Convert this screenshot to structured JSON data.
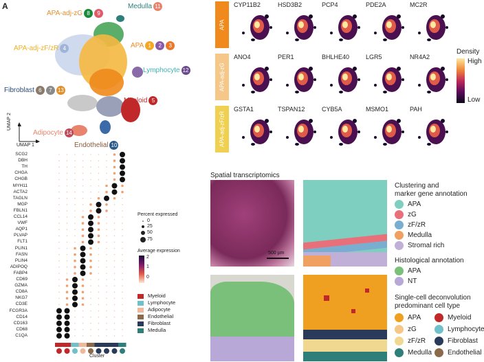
{
  "panel_label": "A",
  "umap": {
    "clusters": [
      {
        "name": "APA-adj-zG",
        "badges": [
          "8",
          "9"
        ],
        "color": "#f0a532",
        "badge_colors": [
          "#1a8a3a",
          "#e25a6a"
        ]
      },
      {
        "name": "Medulla",
        "badges": [
          "11"
        ],
        "color": "#2e7f7a",
        "badge_colors": [
          "#e8836e"
        ]
      },
      {
        "name": "APA",
        "badges": [
          "1",
          "2",
          "3"
        ],
        "color": "#f08a1c",
        "badge_colors": [
          "#f5a623",
          "#8a5aa8",
          "#e9782a"
        ]
      },
      {
        "name": "APA-adj-zF/zR",
        "badges": [
          "4"
        ],
        "color": "#f0c040",
        "badge_colors": [
          "#a0b4d8"
        ]
      },
      {
        "name": "Lymphocyte",
        "badges": [
          "12"
        ],
        "color": "#3fb3b3",
        "badge_colors": [
          "#6a4a8a"
        ]
      },
      {
        "name": "Fibroblast",
        "badges": [
          "6",
          "7",
          "13"
        ],
        "color": "#2a4a7a",
        "badge_colors": [
          "#8a7a6a",
          "#8a8a8a",
          "#e0902a"
        ]
      },
      {
        "name": "Myeloid",
        "badges": [
          "5"
        ],
        "color": "#c0282a",
        "badge_colors": [
          "#c0282a"
        ]
      },
      {
        "name": "Adipocyte",
        "badges": [
          "14"
        ],
        "color": "#e8836e",
        "badge_colors": [
          "#c04a5a"
        ]
      },
      {
        "name": "Endothelial",
        "badges": [
          "10"
        ],
        "color": "#8a5a3a",
        "badge_colors": [
          "#2a5a8a"
        ]
      }
    ],
    "axis_x": "UMAP 1",
    "axis_y": "UMAP 2"
  },
  "dotplot": {
    "genes": [
      "SCG2",
      "DBH",
      "TH",
      "CHGA",
      "CHGB",
      "MYH11",
      "ACTA2",
      "TAGLN",
      "MGP",
      "FBLN1",
      "CCL14",
      "VWF",
      "AQP1",
      "PLVAP",
      "FLT1",
      "PLIN1",
      "FASN",
      "PLIN4",
      "ADIPOQ",
      "FABP4",
      "CD69",
      "GZMA",
      "CD8A",
      "NKG7",
      "CD3E",
      "FCGR3A",
      "CD14",
      "CD163",
      "CD68",
      "C1QA"
    ],
    "size_legend_title": "Percent expressed",
    "size_legend_values": [
      "0",
      "25",
      "50",
      "75"
    ],
    "color_legend_title": "Average expression",
    "color_legend_values": [
      "2",
      "1",
      "0"
    ],
    "celltype_legend": [
      {
        "name": "Myeloid",
        "color": "#c0282a"
      },
      {
        "name": "Lymphocyte",
        "color": "#6fc0c8"
      },
      {
        "name": "Adipocyte",
        "color": "#f0b89a"
      },
      {
        "name": "Endothelial",
        "color": "#8a6a4a"
      },
      {
        "name": "Fibroblast",
        "color": "#2a3a5a"
      },
      {
        "name": "Medulla",
        "color": "#2e7f7a"
      }
    ],
    "x_label": "Cluster"
  },
  "feature_plots": {
    "rows": [
      {
        "group": "APA",
        "color": "#f08a1c",
        "genes": [
          "CYP11B2",
          "HSD3B2",
          "PCP4",
          "PDE2A",
          "MC2R"
        ]
      },
      {
        "group": "APA-adj-zG",
        "color": "#f5c88a",
        "genes": [
          "ANO4",
          "PER1",
          "BHLHE40",
          "LGR5",
          "NR4A2"
        ]
      },
      {
        "group": "APA-adj-zF/zR",
        "color": "#f0d050",
        "genes": [
          "GSTA1",
          "TSPAN12",
          "CYB5A",
          "MSMO1",
          "PAH"
        ]
      }
    ],
    "density_title": "Density",
    "density_high": "High",
    "density_low": "Low"
  },
  "spatial": {
    "title": "Spatial transcriptomics",
    "scalebar": "500 µm",
    "clustering_title_1": "Clustering and",
    "clustering_title_2": "marker gene annotation",
    "clustering_items": [
      {
        "name": "APA",
        "color": "#7fcfc0"
      },
      {
        "name": "zG",
        "color": "#e8707a"
      },
      {
        "name": "zF/zR",
        "color": "#7aaed0"
      },
      {
        "name": "Medulla",
        "color": "#f0a060"
      },
      {
        "name": "Stromal rich",
        "color": "#c0b0d8"
      }
    ],
    "histo_title": "Histological annotation",
    "histo_items": [
      {
        "name": "APA",
        "color": "#7ac07a"
      },
      {
        "name": "NT",
        "color": "#b8a8d8"
      }
    ],
    "decon_title_1": "Single-cell deconvolution",
    "decon_title_2": "predominant cell type",
    "decon_items_left": [
      {
        "name": "APA",
        "color": "#f0a020"
      },
      {
        "name": "zG",
        "color": "#f5c88a"
      },
      {
        "name": "zF/zR",
        "color": "#f0d890"
      },
      {
        "name": "Medulla",
        "color": "#2e7f7a"
      }
    ],
    "decon_items_right": [
      {
        "name": "Myeloid",
        "color": "#c0282a"
      },
      {
        "name": "Lymphocyte",
        "color": "#6fc0c8"
      },
      {
        "name": "Fibroblast",
        "color": "#2a3a5a"
      },
      {
        "name": "Endothelial",
        "color": "#8a6a4a"
      }
    ]
  }
}
